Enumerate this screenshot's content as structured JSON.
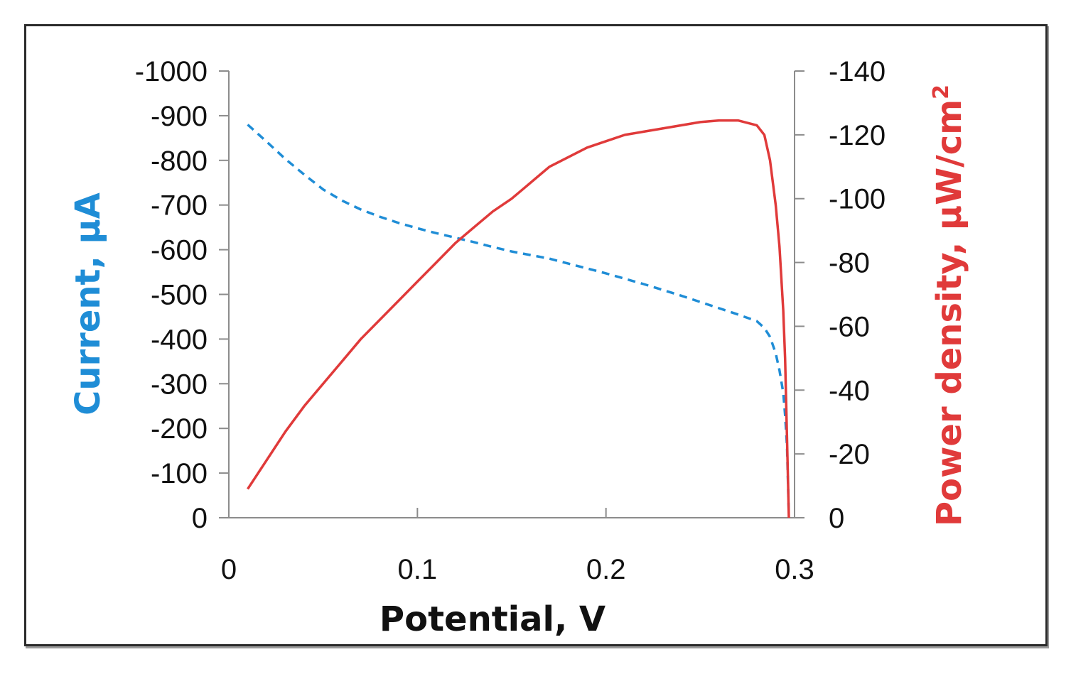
{
  "chart_data": {
    "type": "line",
    "xlabel": "Potential, V",
    "ylabel_left": "Current, μA",
    "ylabel_right_text": "Power density, μW/cm",
    "ylabel_right_sup": "2",
    "xlim": [
      0,
      0.3
    ],
    "ylim_left": [
      0,
      -1000
    ],
    "ylim_right": [
      0,
      -140
    ],
    "x_ticks": [
      "0",
      "0.1",
      "0.2",
      "0.3"
    ],
    "x_tick_values": [
      0,
      0.1,
      0.2,
      0.3
    ],
    "y_left_ticks": [
      "0",
      "-100",
      "-200",
      "-300",
      "-400",
      "-500",
      "-600",
      "-700",
      "-800",
      "-900",
      "-1000"
    ],
    "y_left_tick_values": [
      0,
      -100,
      -200,
      -300,
      -400,
      -500,
      -600,
      -700,
      -800,
      -900,
      -1000
    ],
    "y_right_ticks": [
      "0",
      "-20",
      "-40",
      "-60",
      "-80",
      "-100",
      "-120",
      "-140"
    ],
    "y_right_tick_values": [
      0,
      -20,
      -40,
      -60,
      -80,
      -100,
      -120,
      -140
    ],
    "grid": false,
    "series": [
      {
        "axis": "left",
        "color": "#1f8dd6",
        "style": "dashed",
        "x": [
          0.01,
          0.02,
          0.03,
          0.04,
          0.05,
          0.06,
          0.07,
          0.08,
          0.09,
          0.1,
          0.11,
          0.12,
          0.13,
          0.14,
          0.15,
          0.16,
          0.17,
          0.18,
          0.19,
          0.2,
          0.21,
          0.22,
          0.23,
          0.24,
          0.25,
          0.26,
          0.27,
          0.28,
          0.284,
          0.287,
          0.29,
          0.292,
          0.294,
          0.295,
          0.296,
          0.297
        ],
        "y": [
          -880,
          -842,
          -803,
          -768,
          -735,
          -710,
          -690,
          -674,
          -660,
          -648,
          -637,
          -627,
          -617,
          -606,
          -596,
          -588,
          -580,
          -569,
          -558,
          -547,
          -535,
          -523,
          -510,
          -497,
          -483,
          -469,
          -455,
          -440,
          -425,
          -405,
          -368,
          -330,
          -280,
          -230,
          -160,
          -5
        ]
      },
      {
        "axis": "right",
        "color": "#e03a3a",
        "style": "solid",
        "x": [
          0.01,
          0.02,
          0.03,
          0.04,
          0.05,
          0.06,
          0.07,
          0.08,
          0.09,
          0.1,
          0.11,
          0.12,
          0.13,
          0.14,
          0.15,
          0.16,
          0.17,
          0.18,
          0.19,
          0.2,
          0.21,
          0.22,
          0.23,
          0.24,
          0.25,
          0.26,
          0.27,
          0.28,
          0.284,
          0.287,
          0.29,
          0.292,
          0.294,
          0.295,
          0.296,
          0.297
        ],
        "y": [
          -9,
          -18,
          -27,
          -35,
          -42,
          -49,
          -56,
          -62,
          -68,
          -74,
          -80,
          -86,
          -91,
          -96,
          -100,
          -105,
          -110,
          -113,
          -116,
          -118,
          -120,
          -121,
          -122,
          -123,
          -124,
          -124.5,
          -124.5,
          -123,
          -120,
          -112,
          -98,
          -85,
          -65,
          -50,
          -25,
          0
        ]
      }
    ]
  }
}
